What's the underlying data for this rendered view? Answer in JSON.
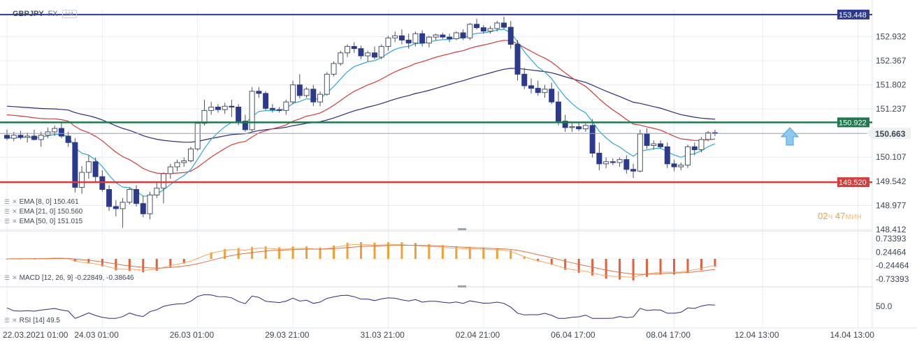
{
  "header": {
    "symbol": "GBPJPY",
    "market": "FX",
    "timeframe": "H4"
  },
  "timer": {
    "hours": "02",
    "hours_unit": "ч",
    "minutes": "47",
    "minutes_unit": "мин"
  },
  "indicators": {
    "ema8": "EMA [8, 0] 150.461",
    "ema21": "EMA [21, 0] 150.560",
    "ema50": "EMA [50, 0] 151.015",
    "macd": "MACD [12, 26, 9] -0.22849, -0.38646",
    "rsi": "RSI [14] 49.5"
  },
  "colors": {
    "bull": "#ffffff",
    "bear": "#2b3a8f",
    "ema8": "#2aa8d8",
    "ema21": "#d03a3a",
    "ema50": "#2d2a7a",
    "top_line": "#2b3a8f",
    "green_line": "#1e7a4e",
    "red_line": "#d93a3a",
    "macd_pos": "#f0a030",
    "macd_neg": "#e4603a",
    "rsi": "#2d2a7a",
    "grid": "#e8ecf1"
  },
  "chart_data": [
    {
      "type": "candlestick",
      "title": "GBPJPY",
      "price_axis": [
        "153.448",
        "152.932",
        "152.367",
        "151.802",
        "151.237",
        "150.922",
        "150.663",
        "150.107",
        "149.542",
        "149.520",
        "148.977",
        "148.412"
      ],
      "x_tick_labels": [
        "22.03.2021  01:00",
        "24.03  01:00",
        "26.03  01:00",
        "29.03  21:00",
        "31.03  21:00",
        "02.04  21:00",
        "06.04  17:00",
        "08.04  17:00",
        "12.04  13:00",
        "14.04  13:00"
      ],
      "ylim": [
        148.41,
        153.56
      ],
      "levels": [
        {
          "name": "top",
          "value": 153.448,
          "label": "153.448"
        },
        {
          "name": "resistance",
          "value": 150.922,
          "label": "150.922"
        },
        {
          "name": "current",
          "value": 150.663,
          "label": "150.663"
        },
        {
          "name": "support",
          "value": 149.52,
          "label": "149.520"
        }
      ],
      "candles": [
        [
          150.62,
          150.75,
          150.5,
          150.55
        ],
        [
          150.55,
          150.7,
          150.48,
          150.62
        ],
        [
          150.62,
          150.72,
          150.52,
          150.57
        ],
        [
          150.57,
          150.68,
          150.45,
          150.6
        ],
        [
          150.6,
          150.75,
          150.5,
          150.52
        ],
        [
          150.52,
          150.7,
          150.35,
          150.62
        ],
        [
          150.62,
          150.8,
          150.55,
          150.7
        ],
        [
          150.7,
          150.85,
          150.6,
          150.78
        ],
        [
          150.78,
          150.92,
          150.55,
          150.6
        ],
        [
          150.6,
          150.7,
          150.35,
          150.45
        ],
        [
          150.45,
          150.55,
          149.28,
          149.4
        ],
        [
          149.4,
          149.9,
          149.25,
          149.75
        ],
        [
          149.75,
          150.15,
          149.6,
          150.0
        ],
        [
          150.0,
          150.1,
          149.5,
          149.65
        ],
        [
          149.65,
          149.8,
          149.3,
          149.35
        ],
        [
          149.35,
          149.45,
          148.85,
          148.95
        ],
        [
          148.95,
          149.1,
          148.72,
          148.9
        ],
        [
          148.9,
          149.15,
          148.45,
          149.05
        ],
        [
          149.05,
          149.4,
          149.0,
          149.35
        ],
        [
          149.35,
          149.45,
          148.95,
          149.02
        ],
        [
          149.02,
          149.2,
          148.7,
          148.78
        ],
        [
          148.78,
          149.3,
          148.65,
          149.22
        ],
        [
          149.22,
          149.5,
          149.15,
          149.38
        ],
        [
          149.38,
          149.75,
          149.02,
          149.72
        ],
        [
          149.72,
          149.95,
          149.6,
          149.88
        ],
        [
          149.88,
          150.05,
          149.78,
          149.98
        ],
        [
          149.98,
          150.1,
          149.88,
          150.02
        ],
        [
          150.02,
          150.35,
          149.98,
          150.3
        ],
        [
          150.3,
          150.95,
          150.25,
          150.9
        ],
        [
          150.9,
          151.45,
          150.85,
          151.2
        ],
        [
          151.2,
          151.4,
          151.1,
          151.28
        ],
        [
          151.28,
          151.35,
          151.15,
          151.22
        ],
        [
          151.22,
          151.38,
          151.12,
          151.3
        ],
        [
          151.3,
          151.45,
          151.05,
          151.28
        ],
        [
          151.28,
          151.35,
          150.85,
          150.95
        ],
        [
          150.95,
          151.1,
          150.7,
          150.75
        ],
        [
          150.75,
          151.75,
          150.7,
          151.65
        ],
        [
          151.65,
          151.75,
          151.5,
          151.6
        ],
        [
          151.6,
          151.65,
          151.2,
          151.25
        ],
        [
          151.25,
          151.35,
          151.15,
          151.22
        ],
        [
          151.22,
          151.28,
          151.15,
          151.2
        ],
        [
          151.2,
          151.45,
          151.1,
          151.4
        ],
        [
          151.4,
          151.9,
          151.35,
          151.8
        ],
        [
          151.8,
          152.05,
          151.48,
          151.55
        ],
        [
          151.55,
          151.75,
          151.5,
          151.7
        ],
        [
          151.7,
          151.8,
          151.3,
          151.4
        ],
        [
          151.4,
          151.65,
          151.3,
          151.58
        ],
        [
          151.58,
          152.1,
          151.55,
          152.05
        ],
        [
          152.05,
          152.35,
          152.0,
          152.3
        ],
        [
          152.3,
          152.6,
          152.25,
          152.55
        ],
        [
          152.55,
          152.75,
          152.45,
          152.7
        ],
        [
          152.7,
          152.8,
          152.55,
          152.65
        ],
        [
          152.65,
          152.72,
          152.4,
          152.48
        ],
        [
          152.48,
          152.6,
          152.35,
          152.55
        ],
        [
          152.55,
          152.7,
          152.4,
          152.45
        ],
        [
          152.45,
          152.75,
          152.4,
          152.7
        ],
        [
          152.7,
          152.95,
          152.6,
          152.9
        ],
        [
          152.9,
          153.05,
          152.8,
          152.95
        ],
        [
          152.95,
          153.1,
          152.75,
          152.85
        ],
        [
          152.85,
          153.0,
          152.65,
          152.78
        ],
        [
          152.78,
          153.05,
          152.7,
          153.0
        ],
        [
          153.0,
          153.08,
          152.7,
          152.78
        ],
        [
          152.78,
          152.95,
          152.68,
          152.92
        ],
        [
          152.92,
          153.0,
          152.85,
          152.97
        ],
        [
          152.97,
          153.02,
          152.88,
          152.92
        ],
        [
          152.92,
          153.0,
          152.8,
          152.88
        ],
        [
          152.88,
          153.05,
          152.85,
          153.02
        ],
        [
          153.02,
          153.1,
          152.85,
          152.9
        ],
        [
          152.9,
          153.25,
          152.85,
          153.22
        ],
        [
          153.22,
          153.35,
          153.1,
          153.14
        ],
        [
          153.14,
          153.2,
          153.0,
          153.06
        ],
        [
          153.06,
          153.18,
          153.0,
          153.12
        ],
        [
          153.12,
          153.3,
          153.05,
          153.25
        ],
        [
          153.25,
          153.4,
          153.1,
          153.15
        ],
        [
          153.15,
          153.3,
          152.65,
          152.75
        ],
        [
          152.75,
          152.85,
          151.9,
          152.05
        ],
        [
          152.05,
          152.2,
          151.7,
          151.78
        ],
        [
          151.78,
          151.95,
          151.6,
          151.72
        ],
        [
          151.72,
          151.9,
          151.55,
          151.62
        ],
        [
          151.62,
          151.8,
          151.5,
          151.7
        ],
        [
          151.7,
          151.85,
          151.35,
          151.4
        ],
        [
          151.4,
          151.65,
          150.85,
          150.95
        ],
        [
          150.95,
          151.1,
          150.7,
          150.8
        ],
        [
          150.8,
          150.9,
          150.7,
          150.82
        ],
        [
          150.82,
          150.92,
          150.72,
          150.77
        ],
        [
          150.77,
          150.9,
          150.7,
          150.85
        ],
        [
          150.85,
          151.0,
          150.1,
          150.2
        ],
        [
          150.2,
          150.45,
          149.8,
          149.95
        ],
        [
          149.95,
          150.1,
          149.85,
          150.0
        ],
        [
          150.0,
          150.08,
          149.92,
          149.98
        ],
        [
          149.98,
          150.1,
          149.88,
          150.05
        ],
        [
          150.05,
          150.15,
          149.72,
          149.82
        ],
        [
          149.82,
          149.95,
          149.62,
          149.78
        ],
        [
          149.78,
          150.75,
          149.75,
          150.65
        ],
        [
          150.65,
          150.78,
          150.3,
          150.38
        ],
        [
          150.38,
          150.5,
          150.28,
          150.42
        ],
        [
          150.42,
          150.5,
          150.3,
          150.35
        ],
        [
          150.35,
          150.45,
          149.85,
          149.95
        ],
        [
          149.95,
          150.05,
          149.78,
          149.88
        ],
        [
          149.88,
          149.98,
          149.8,
          149.92
        ],
        [
          149.92,
          150.4,
          149.85,
          150.35
        ],
        [
          150.35,
          150.45,
          150.15,
          150.28
        ],
        [
          150.28,
          150.58,
          150.22,
          150.52
        ],
        [
          150.52,
          150.72,
          150.48,
          150.68
        ],
        [
          150.68,
          150.75,
          150.6,
          150.66
        ]
      ],
      "series": [
        {
          "name": "EMA [8, 0]",
          "values_note": "computed from close"
        },
        {
          "name": "EMA [21, 0]",
          "values_note": "computed from close"
        },
        {
          "name": "EMA [50, 0]",
          "values_note": "computed from close"
        }
      ]
    },
    {
      "type": "bar",
      "title": "MACD [12, 26, 9]",
      "y_tick_labels": [
        "0.73393",
        "0.24464",
        "-0.24464",
        "-0.73393"
      ],
      "ylim": [
        -0.88,
        0.88
      ],
      "current": [
        -0.22849,
        -0.38646
      ]
    },
    {
      "type": "line",
      "title": "RSI [14]",
      "y_tick_labels": [
        "50.0"
      ],
      "current": 49.5
    }
  ]
}
